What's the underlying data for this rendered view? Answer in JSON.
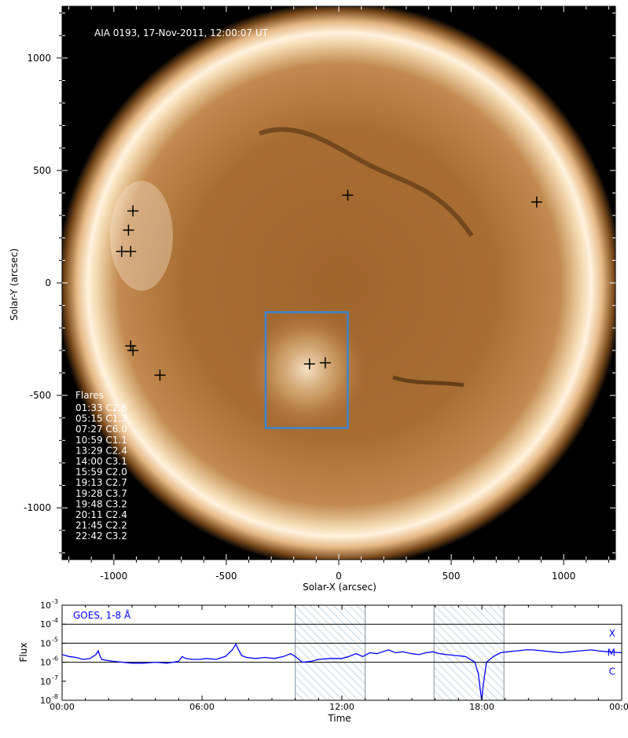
{
  "chart_data": [
    {
      "type": "image",
      "overlay_title": "AIA 0193, 17-Nov-2011, 12:00:07 UT",
      "xlabel": "Solar-X (arcsec)",
      "ylabel": "Solar-Y (arcsec)",
      "xlim": [
        -1230,
        1230
      ],
      "ylim": [
        -1230,
        1230
      ],
      "xticks": [
        -1000,
        -500,
        0,
        500,
        1000
      ],
      "xtick_labels": [
        "-1000",
        "-500",
        "0",
        "500",
        "1000"
      ],
      "yticks": [
        -1000,
        -500,
        0,
        500,
        1000
      ],
      "ytick_labels": [
        "-1000",
        "-500",
        "0",
        "500",
        "1000"
      ],
      "solar_radius_arcsec": 975,
      "flare_markers": [
        {
          "x": -915,
          "y": 320
        },
        {
          "x": -935,
          "y": 235
        },
        {
          "x": -965,
          "y": 140
        },
        {
          "x": -925,
          "y": 140
        },
        {
          "x": -925,
          "y": -280
        },
        {
          "x": -915,
          "y": -300
        },
        {
          "x": -795,
          "y": -410
        },
        {
          "x": 40,
          "y": 390
        },
        {
          "x": 880,
          "y": 360
        },
        {
          "x": -130,
          "y": -360
        },
        {
          "x": -60,
          "y": -355
        }
      ],
      "highlight_box": {
        "x0": -325,
        "x1": 40,
        "y0": -645,
        "y1": -130,
        "color": "#3a86d0"
      },
      "flares_title": "Flares",
      "flares": [
        "01:33 C2.6",
        "05:15 C1.3",
        "07:27 C6.0",
        "10:59 C1.1",
        "13:29 C2.4",
        "14:00 C3.1",
        "15:59 C2.0",
        "19:13 C2.7",
        "19:28 C3.7",
        "19:48 C3.2",
        "20:11 C2.4",
        "21:45 C2.2",
        "22:42 C3.2"
      ]
    },
    {
      "type": "line",
      "legend": "GOES, 1-8 Å",
      "xlabel": "Time",
      "ylabel": "Flux",
      "xlim": [
        0,
        24
      ],
      "xticks": [
        0,
        6,
        12,
        18,
        24
      ],
      "xtick_labels": [
        "00:00",
        "06:00",
        "12:00",
        "18:00",
        "00:00"
      ],
      "yscale": "log",
      "ylim_exp": [
        -8,
        -3
      ],
      "ytick_exps": [
        -8,
        -7,
        -6,
        -5,
        -4,
        -3
      ],
      "class_levels": [
        {
          "label": "X",
          "exp": -4
        },
        {
          "label": "M",
          "exp": -5
        },
        {
          "label": "C",
          "exp": -6
        }
      ],
      "shaded_intervals": [
        [
          10.0,
          13.0
        ],
        [
          15.95,
          18.95
        ]
      ],
      "series_color": "#0000ff",
      "x": [
        0,
        0.3,
        0.6,
        0.9,
        1.2,
        1.45,
        1.55,
        1.6,
        1.7,
        1.9,
        2.2,
        2.6,
        3.0,
        3.5,
        4.0,
        4.5,
        5.0,
        5.15,
        5.3,
        5.6,
        5.9,
        6.2,
        6.6,
        7.0,
        7.3,
        7.45,
        7.55,
        7.7,
        7.9,
        8.3,
        8.7,
        9.1,
        9.5,
        9.8,
        10.0,
        10.3,
        10.7,
        11.0,
        11.5,
        12.0,
        12.3,
        12.6,
        12.9,
        13.2,
        13.5,
        14.0,
        14.3,
        14.6,
        15.0,
        15.3,
        15.6,
        15.9,
        16.2,
        16.5,
        16.9,
        17.3,
        17.7,
        17.85,
        17.95,
        18.0,
        18.05,
        18.2,
        18.5,
        18.8,
        19.1,
        19.5,
        19.9,
        20.2,
        20.6,
        21.0,
        21.4,
        21.8,
        22.2,
        22.7,
        23.0,
        23.4,
        24.0
      ],
      "y_exp": [
        -5.6,
        -5.7,
        -5.75,
        -5.85,
        -5.8,
        -5.6,
        -5.4,
        -5.6,
        -5.85,
        -5.9,
        -5.95,
        -6.0,
        -6.05,
        -6.05,
        -6.0,
        -6.05,
        -5.95,
        -5.7,
        -5.8,
        -5.85,
        -5.85,
        -5.8,
        -5.85,
        -5.7,
        -5.35,
        -5.05,
        -5.3,
        -5.65,
        -5.75,
        -5.8,
        -5.75,
        -5.8,
        -5.7,
        -5.55,
        -5.7,
        -6.0,
        -5.95,
        -5.85,
        -5.8,
        -5.8,
        -5.7,
        -5.55,
        -5.7,
        -5.5,
        -5.55,
        -5.35,
        -5.5,
        -5.45,
        -5.55,
        -5.6,
        -5.5,
        -5.45,
        -5.55,
        -5.6,
        -5.65,
        -5.7,
        -6.0,
        -6.6,
        -7.6,
        -8.0,
        -7.3,
        -6.0,
        -5.7,
        -5.5,
        -5.45,
        -5.4,
        -5.35,
        -5.35,
        -5.4,
        -5.45,
        -5.5,
        -5.45,
        -5.4,
        -5.35,
        -5.4,
        -5.45,
        -5.5
      ]
    }
  ]
}
